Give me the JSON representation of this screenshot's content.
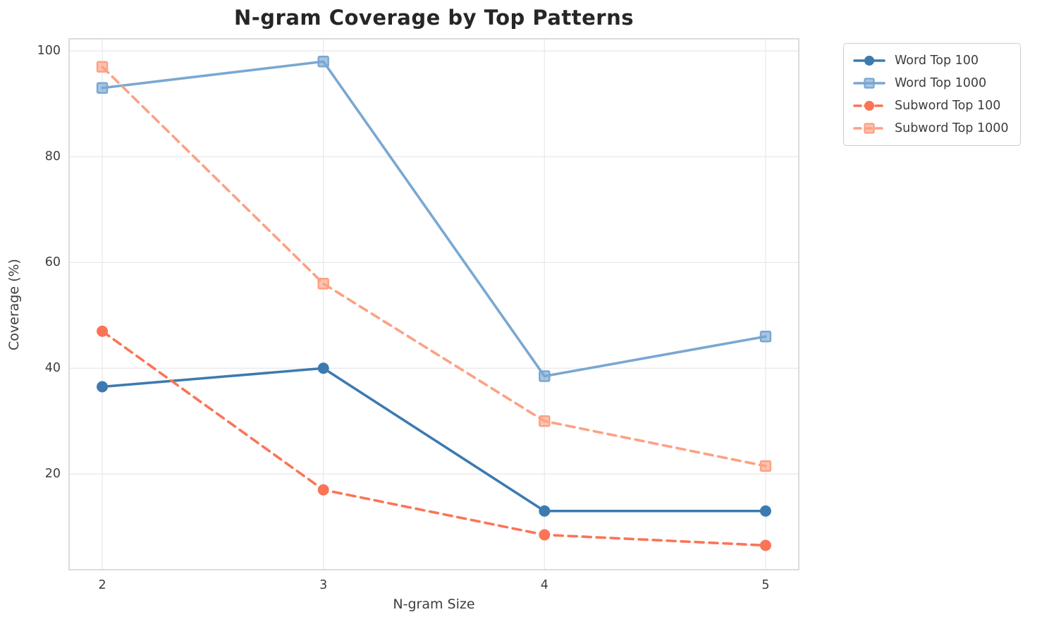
{
  "title": "N-gram Coverage by Top Patterns",
  "chart_data": {
    "type": "line",
    "title": "N-gram Coverage by Top Patterns",
    "xlabel": "N-gram Size",
    "ylabel": "Coverage (%)",
    "x": [
      2,
      3,
      4,
      5
    ],
    "xtick_labels": [
      "2",
      "3",
      "4",
      "5"
    ],
    "ytick_values": [
      20,
      40,
      60,
      80,
      100
    ],
    "ytick_labels": [
      "20",
      "40",
      "60",
      "80",
      "100"
    ],
    "xlim": [
      1.85,
      5.15
    ],
    "ylim": [
      1.9,
      102.3
    ],
    "grid": true,
    "legend_position": "outside-upper-right",
    "series": [
      {
        "name": "Word Top 100",
        "values": [
          36.5,
          40,
          13,
          13
        ],
        "color": "#3c7ab0",
        "line_style": "solid",
        "marker": "circle"
      },
      {
        "name": "Word Top 1000",
        "values": [
          93,
          98,
          38.5,
          46
        ],
        "color": "#7aa7d1",
        "line_style": "solid",
        "marker": "square"
      },
      {
        "name": "Subword Top 100",
        "values": [
          47,
          17,
          8.5,
          6.5
        ],
        "color": "#fb7456",
        "line_style": "dashed",
        "marker": "circle"
      },
      {
        "name": "Subword Top 1000",
        "values": [
          97,
          56,
          30,
          21.5
        ],
        "color": "#fca184",
        "line_style": "dashed",
        "marker": "square"
      }
    ],
    "colors": {
      "background": "#ffffff",
      "grid": "#e8e8ec",
      "spine": "#c9c9c9",
      "tick_text": "#3d3d3d",
      "title_text": "#262626"
    }
  }
}
